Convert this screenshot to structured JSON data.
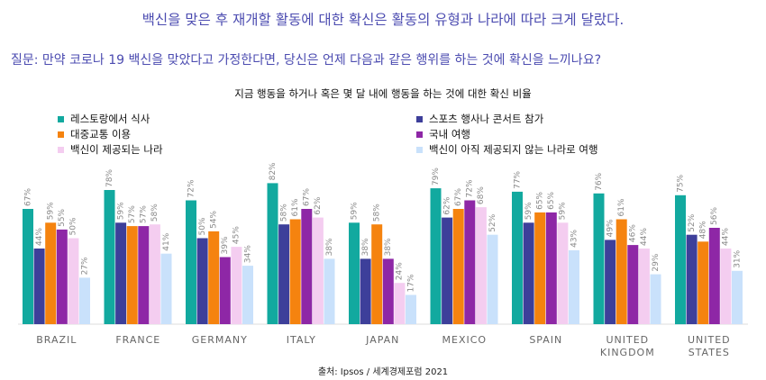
{
  "headline": "백신을 맞은 후 재개할 활동에 대한 확신은 활동의 유형과 나라에 따라 크게 달랐다.",
  "question": "질문: 만약 코로나 19 백신을 맞았다고 가정한다면, 당신은 언제 다음과 같은 행위를 하는 것에 확신을 느끼나요?",
  "source": "출처: Ipsos / 세계경제포럼 2021",
  "chart_data": {
    "type": "bar",
    "title": "지금 행동을 하거나 혹은 몇 달 내에 행동을 하는 것에 대한 확신 비율",
    "xlabel": "",
    "ylabel": "",
    "ylim": [
      0,
      100
    ],
    "grid": false,
    "legend_placement": "top",
    "categories": [
      [
        "BRAZIL"
      ],
      [
        "FRANCE"
      ],
      [
        "GERMANY"
      ],
      [
        "ITALY"
      ],
      [
        "JAPAN"
      ],
      [
        "MEXICO"
      ],
      [
        "SPAIN"
      ],
      [
        "UNITED",
        "KINGDOM"
      ],
      [
        "UNITED",
        "STATES"
      ]
    ],
    "series": [
      {
        "name": "레스토랑에서 식사",
        "color": "#12a99f",
        "values": [
          67,
          78,
          72,
          82,
          59,
          79,
          77,
          76,
          75
        ]
      },
      {
        "name": "스포츠 행사나 콘서트 참가",
        "color": "#3d3f9a",
        "values": [
          44,
          59,
          50,
          58,
          38,
          62,
          59,
          49,
          52
        ]
      },
      {
        "name": "대중교통 이용",
        "color": "#f5830f",
        "values": [
          59,
          57,
          54,
          61,
          58,
          67,
          65,
          61,
          48
        ]
      },
      {
        "name": "국내 여행",
        "color": "#8e27a6",
        "values": [
          55,
          57,
          39,
          67,
          38,
          72,
          65,
          46,
          56
        ]
      },
      {
        "name": "백신이 제공되는 나라",
        "color": "#f4cdf0",
        "values": [
          50,
          58,
          45,
          62,
          24,
          68,
          59,
          44,
          44
        ]
      },
      {
        "name": "백신이 아직 제공되지 않는 나라로 여행",
        "color": "#c9e1fb",
        "values": [
          27,
          41,
          34,
          38,
          17,
          52,
          43,
          29,
          31
        ]
      }
    ]
  }
}
